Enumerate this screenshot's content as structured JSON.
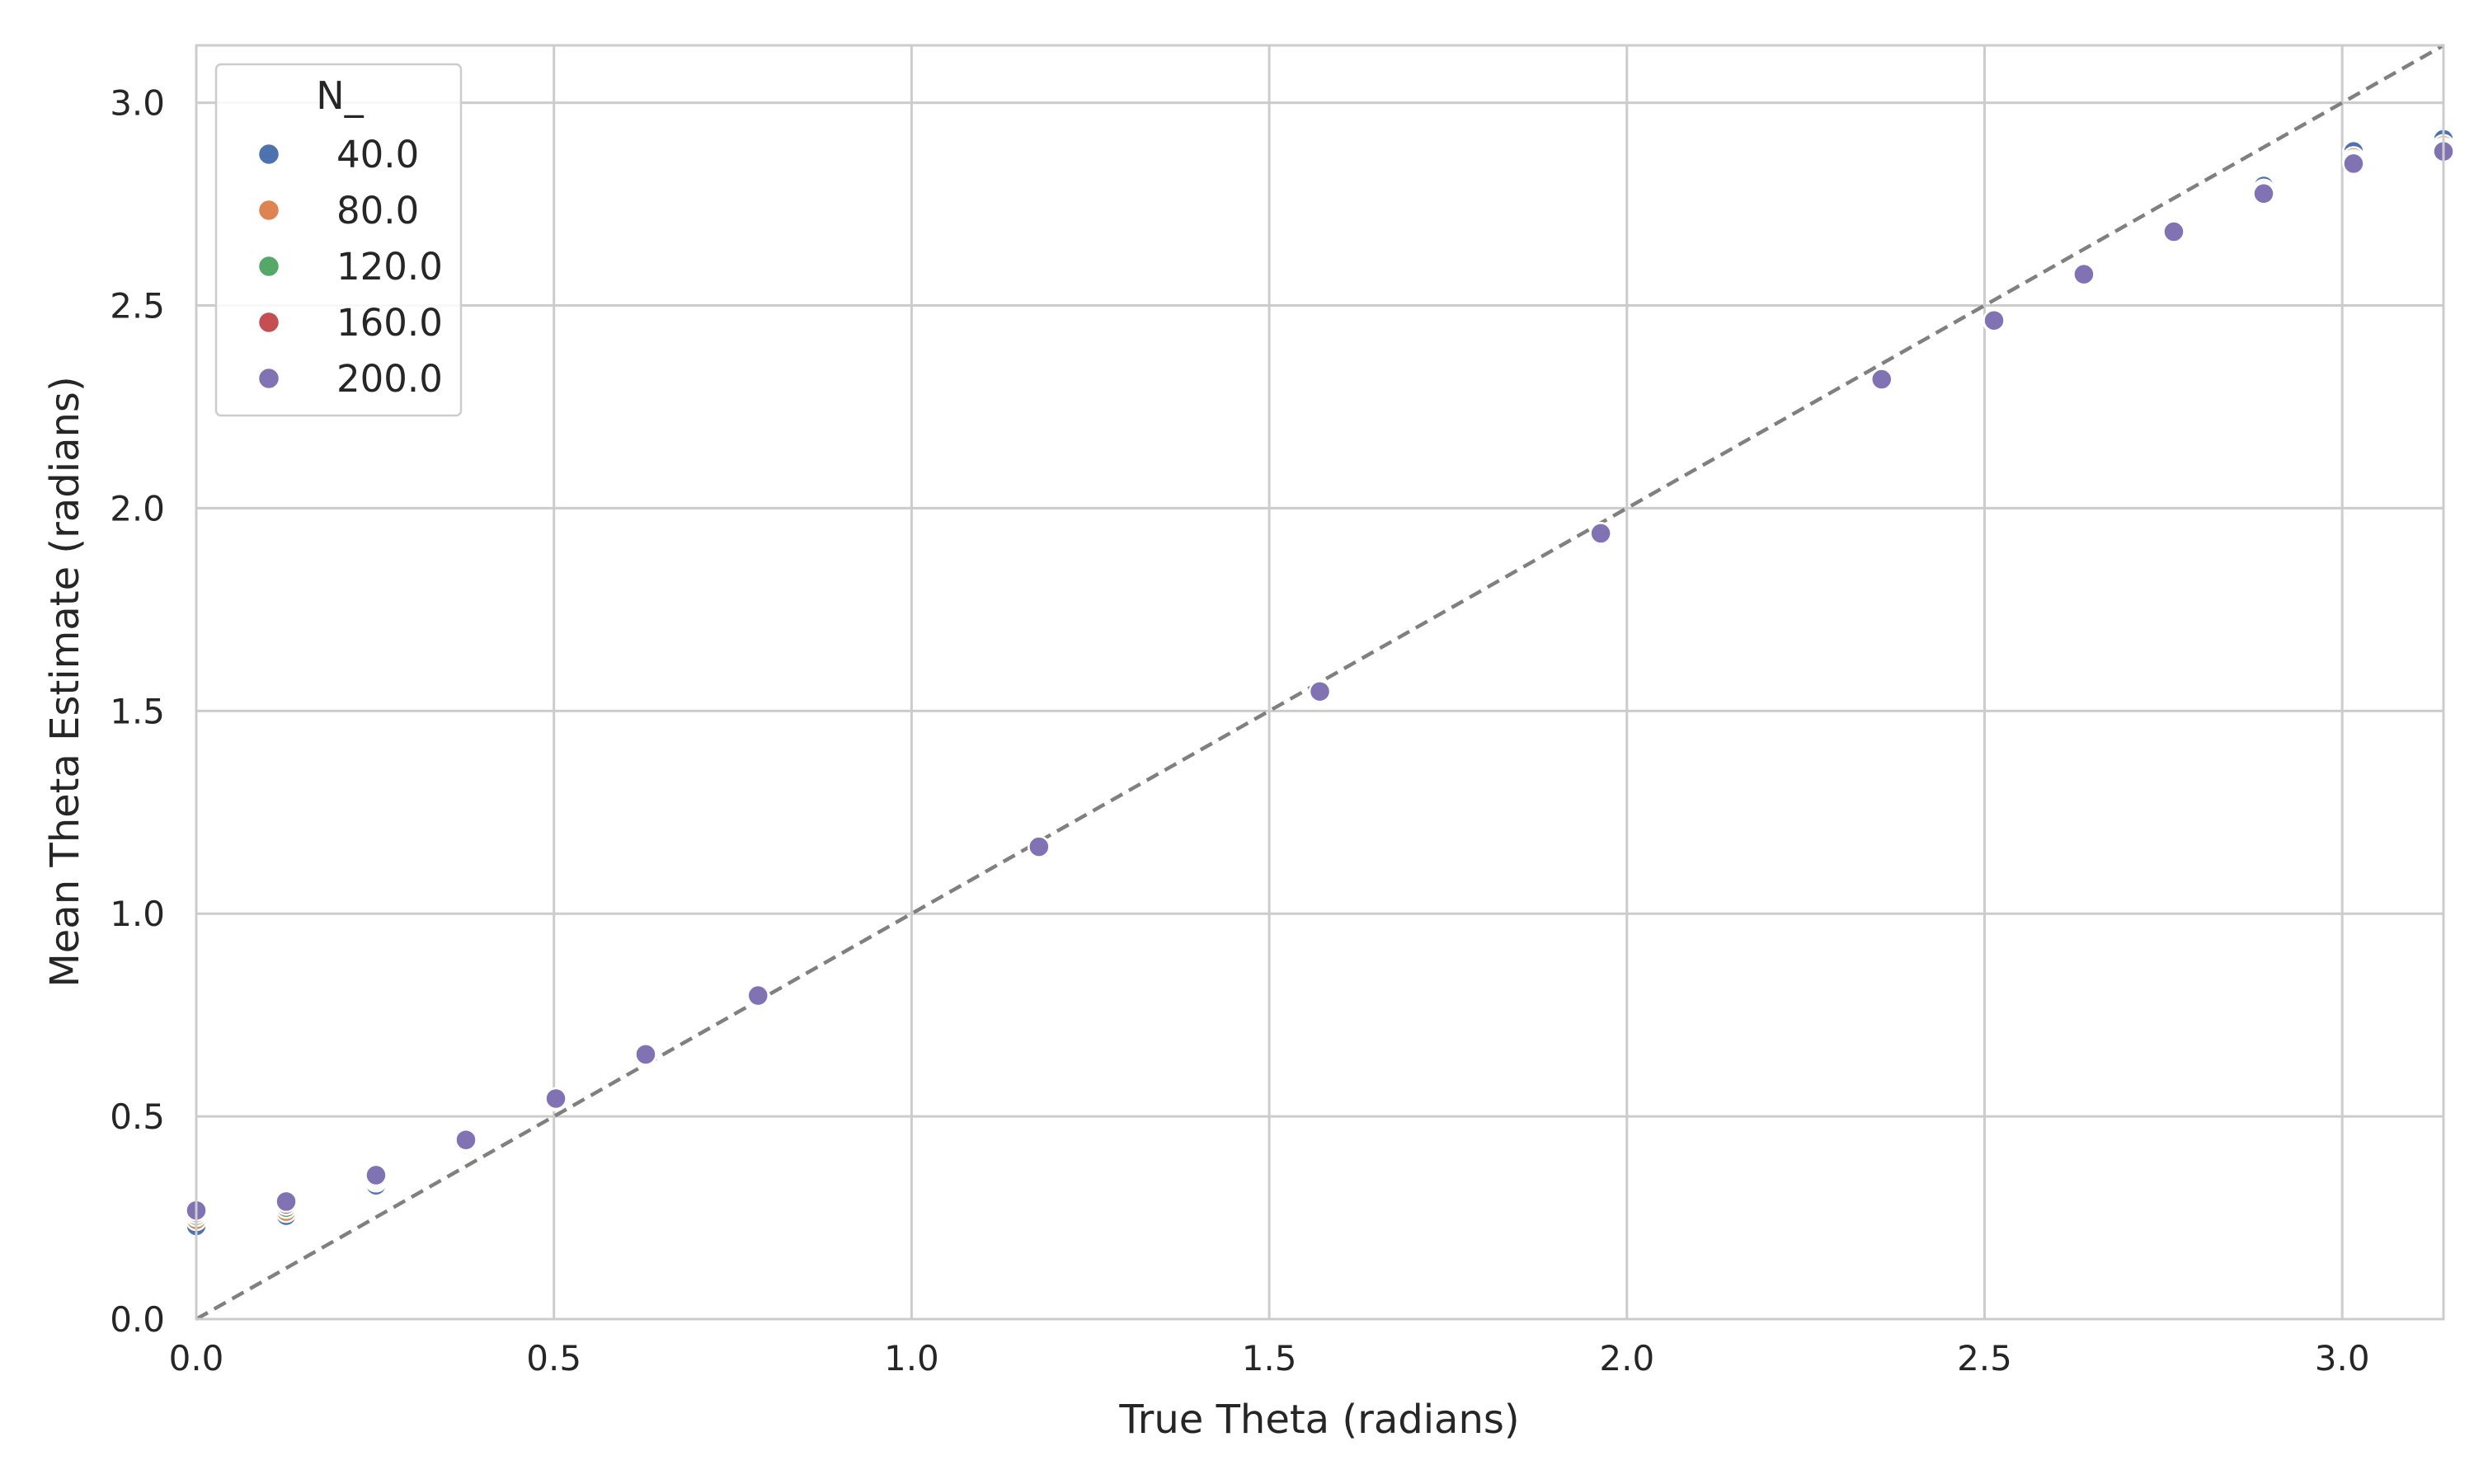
{
  "chart_data": {
    "type": "scatter",
    "xlabel": "True Theta (radians)",
    "ylabel": "Mean Theta Estimate (radians)",
    "xlim": [
      0,
      3.1416
    ],
    "ylim": [
      0,
      3.1416
    ],
    "x_ticks": [
      0.0,
      0.5,
      1.0,
      1.5,
      2.0,
      2.5,
      3.0
    ],
    "x_tick_labels": [
      "0.0",
      "0.5",
      "1.0",
      "1.5",
      "2.0",
      "2.5",
      "3.0"
    ],
    "y_ticks": [
      0.0,
      0.5,
      1.0,
      1.5,
      2.0,
      2.5,
      3.0
    ],
    "y_tick_labels": [
      "0.0",
      "0.5",
      "1.0",
      "1.5",
      "2.0",
      "2.5",
      "3.0"
    ],
    "grid": true,
    "legend": {
      "title": "N_",
      "position": "top-left"
    },
    "reference_lines": [
      {
        "kind": "diagonal",
        "style": "dashed",
        "color": "#808080"
      },
      {
        "kind": "horizontal",
        "y": 0,
        "style": "dashed",
        "color": "#c8c8c8"
      }
    ],
    "x": [
      0.0,
      0.1257,
      0.2513,
      0.377,
      0.5027,
      0.6283,
      0.7854,
      1.1781,
      1.5708,
      1.9635,
      2.3562,
      2.5133,
      2.6389,
      2.7646,
      2.8903,
      3.0159,
      3.1416
    ],
    "series": [
      {
        "name": "40.0",
        "color": "#4c72b0",
        "values": [
          0.23,
          0.255,
          0.33,
          0.43,
          0.54,
          0.65,
          0.795,
          1.165,
          1.545,
          1.935,
          2.315,
          2.46,
          2.575,
          2.69,
          2.795,
          2.88,
          2.91
        ]
      },
      {
        "name": "80.0",
        "color": "#dd8452",
        "values": [
          0.245,
          0.265,
          0.34,
          0.435,
          0.541,
          0.651,
          0.796,
          1.165,
          1.546,
          1.936,
          2.316,
          2.461,
          2.575,
          2.685,
          2.785,
          2.865,
          2.895
        ]
      },
      {
        "name": "120.0",
        "color": "#55a868",
        "values": [
          0.255,
          0.275,
          0.345,
          0.437,
          0.542,
          0.652,
          0.797,
          1.165,
          1.547,
          1.937,
          2.317,
          2.462,
          2.576,
          2.684,
          2.78,
          2.858,
          2.888
        ]
      },
      {
        "name": "160.0",
        "color": "#c44e52",
        "values": [
          0.262,
          0.283,
          0.35,
          0.439,
          0.543,
          0.652,
          0.797,
          1.165,
          1.547,
          1.938,
          2.318,
          2.463,
          2.577,
          2.683,
          2.778,
          2.853,
          2.884
        ]
      },
      {
        "name": "200.0",
        "color": "#8172b3",
        "values": [
          0.268,
          0.29,
          0.355,
          0.442,
          0.544,
          0.653,
          0.798,
          1.165,
          1.548,
          1.938,
          2.318,
          2.463,
          2.577,
          2.682,
          2.776,
          2.85,
          2.88
        ]
      }
    ]
  }
}
